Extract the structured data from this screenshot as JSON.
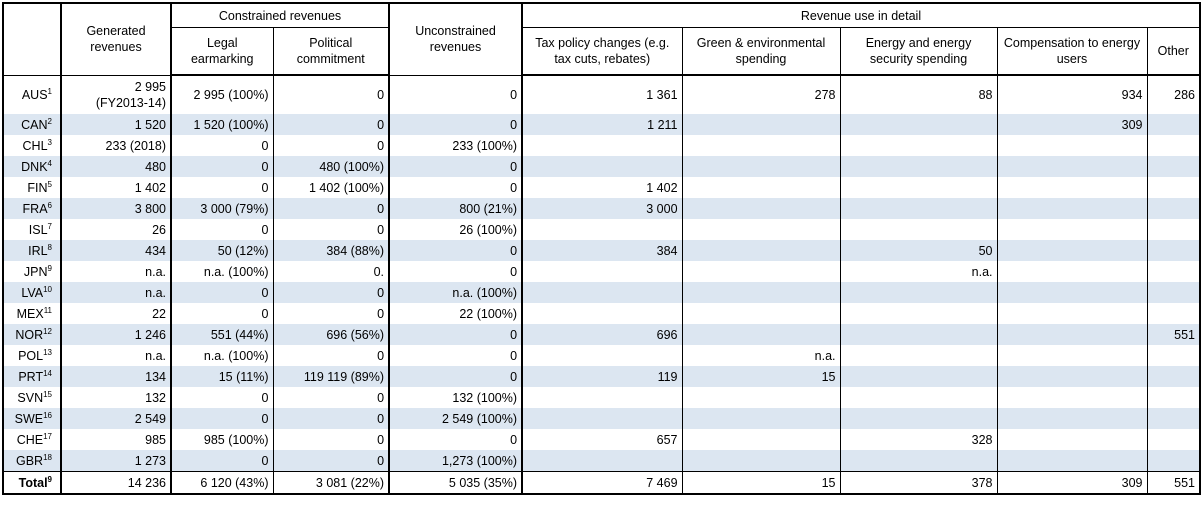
{
  "headers": {
    "generated": "Generated revenues",
    "constrained": "Constrained revenues",
    "legal": "Legal earmarking",
    "political": "Political commitment",
    "unconstrained": "Unconstrained revenues",
    "detail": "Revenue use in detail",
    "tax": "Tax policy changes (e.g. tax cuts, rebates)",
    "green": "Green & environmental spending",
    "energy": "Energy and energy security spending",
    "compensation": "Compensation to energy users",
    "other": "Other"
  },
  "rows": [
    {
      "country": "AUS",
      "note": "1",
      "gen1": "2 995",
      "gen2": "(FY2013-14)",
      "legal": "2 995 (100%)",
      "political": "0",
      "unconstrained": "0",
      "tax": "1 361",
      "green": "278",
      "energy": "88",
      "comp": "934",
      "other": "286"
    },
    {
      "country": "CAN",
      "note": "2",
      "gen1": "1 520",
      "gen2": "",
      "legal": "1 520 (100%)",
      "political": "0",
      "unconstrained": "0",
      "tax": "1 211",
      "green": "",
      "energy": "",
      "comp": "309",
      "other": ""
    },
    {
      "country": "CHL",
      "note": "3",
      "gen1": "233 (2018)",
      "gen2": "",
      "legal": "0",
      "political": "0",
      "unconstrained": "233 (100%)",
      "tax": "",
      "green": "",
      "energy": "",
      "comp": "",
      "other": ""
    },
    {
      "country": "DNK",
      "note": "4",
      "gen1": "480",
      "gen2": "",
      "legal": "0",
      "political": "480 (100%)",
      "unconstrained": "0",
      "tax": "",
      "green": "",
      "energy": "",
      "comp": "",
      "other": ""
    },
    {
      "country": "FIN",
      "note": "5",
      "gen1": "1 402",
      "gen2": "",
      "legal": "0",
      "political": "1 402 (100%)",
      "unconstrained": "0",
      "tax": "1 402",
      "green": "",
      "energy": "",
      "comp": "",
      "other": ""
    },
    {
      "country": "FRA",
      "note": "6",
      "gen1": "3 800",
      "gen2": "",
      "legal": "3 000 (79%)",
      "political": "0",
      "unconstrained": "800 (21%)",
      "tax": "3 000",
      "green": "",
      "energy": "",
      "comp": "",
      "other": ""
    },
    {
      "country": "ISL",
      "note": "7",
      "gen1": "26",
      "gen2": "",
      "legal": "0",
      "political": "0",
      "unconstrained": "26 (100%)",
      "tax": "",
      "green": "",
      "energy": "",
      "comp": "",
      "other": ""
    },
    {
      "country": "IRL",
      "note": "8",
      "gen1": "434",
      "gen2": "",
      "legal": "50 (12%)",
      "political": "384 (88%)",
      "unconstrained": "0",
      "tax": "384",
      "green": "",
      "energy": "50",
      "comp": "",
      "other": ""
    },
    {
      "country": "JPN",
      "note": "9",
      "gen1": "n.a.",
      "gen2": "",
      "legal": "n.a. (100%)",
      "political": "0.",
      "unconstrained": "0",
      "tax": "",
      "green": "",
      "energy": "n.a.",
      "comp": "",
      "other": ""
    },
    {
      "country": "LVA",
      "note": "10",
      "gen1": "n.a.",
      "gen2": "",
      "legal": "0",
      "political": "0",
      "unconstrained": "n.a. (100%)",
      "tax": "",
      "green": "",
      "energy": "",
      "comp": "",
      "other": ""
    },
    {
      "country": "MEX",
      "note": "11",
      "gen1": "22",
      "gen2": "",
      "legal": "0",
      "political": "0",
      "unconstrained": "22 (100%)",
      "tax": "",
      "green": "",
      "energy": "",
      "comp": "",
      "other": ""
    },
    {
      "country": "NOR",
      "note": "12",
      "gen1": "1 246",
      "gen2": "",
      "legal": "551 (44%)",
      "political": "696 (56%)",
      "unconstrained": "0",
      "tax": "696",
      "green": "",
      "energy": "",
      "comp": "",
      "other": "551"
    },
    {
      "country": "POL",
      "note": "13",
      "gen1": "n.a.",
      "gen2": "",
      "legal": "n.a. (100%)",
      "political": "0",
      "unconstrained": "0",
      "tax": "",
      "green": "n.a.",
      "energy": "",
      "comp": "",
      "other": ""
    },
    {
      "country": "PRT",
      "note": "14",
      "gen1": "134",
      "gen2": "",
      "legal": "15 (11%)",
      "political": "119 119 (89%)",
      "unconstrained": "0",
      "tax": "119",
      "green": "15",
      "energy": "",
      "comp": "",
      "other": ""
    },
    {
      "country": "SVN",
      "note": "15",
      "gen1": "132",
      "gen2": "",
      "legal": "0",
      "political": "0",
      "unconstrained": "132 (100%)",
      "tax": "",
      "green": "",
      "energy": "",
      "comp": "",
      "other": ""
    },
    {
      "country": "SWE",
      "note": "16",
      "gen1": "2 549",
      "gen2": "",
      "legal": "0",
      "political": "0",
      "unconstrained": "2 549 (100%)",
      "tax": "",
      "green": "",
      "energy": "",
      "comp": "",
      "other": ""
    },
    {
      "country": "CHE",
      "note": "17",
      "gen1": "985",
      "gen2": "",
      "legal": "985 (100%)",
      "political": "0",
      "unconstrained": "0",
      "tax": "657",
      "green": "",
      "energy": "328",
      "comp": "",
      "other": ""
    },
    {
      "country": "GBR",
      "note": "18",
      "gen1": "1 273",
      "gen2": "",
      "legal": "0",
      "political": "0",
      "unconstrained": "1,273 (100%)",
      "tax": "",
      "green": "",
      "energy": "",
      "comp": "",
      "other": ""
    }
  ],
  "total": {
    "country": "Total",
    "note": "9",
    "gen1": "14 236",
    "legal": "6 120 (43%)",
    "political": "3 081 (22%)",
    "unconstrained": "5 035 (35%)",
    "tax": "7 469",
    "green": "15",
    "energy": "378",
    "comp": "309",
    "other": "551"
  }
}
